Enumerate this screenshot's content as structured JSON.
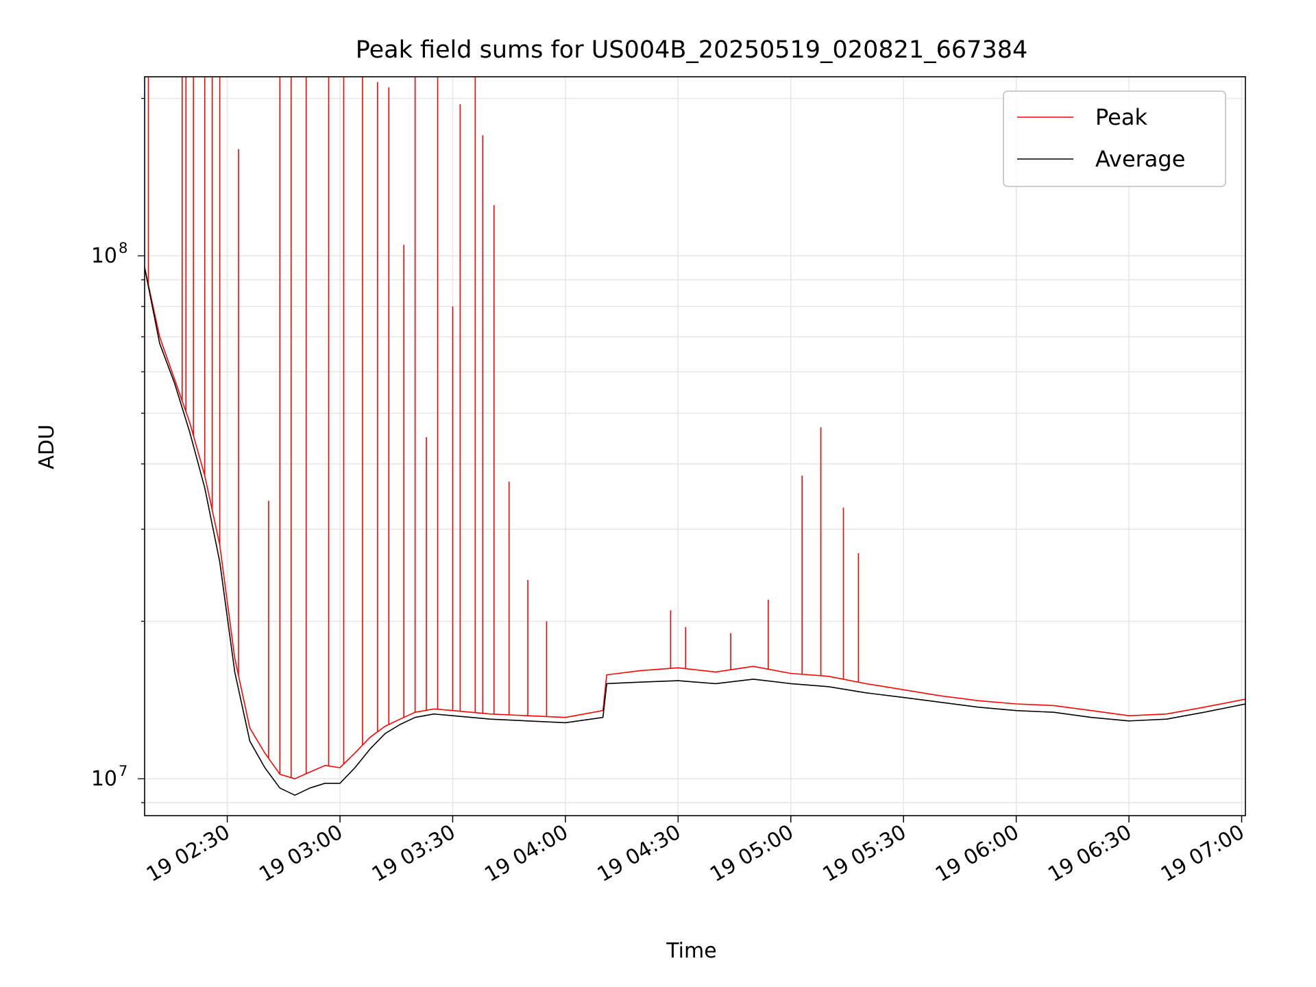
{
  "chart_data": {
    "type": "line",
    "title": "Peak field sums for US004B_20250519_020821_667384",
    "xlabel": "Time",
    "ylabel": "ADU",
    "x_range": [
      "2025-05-19 02:08",
      "2025-05-19 07:01"
    ],
    "ylim": [
      8500000,
      220000000
    ],
    "yscale": "log",
    "grid": true,
    "legend_placement": "upper right",
    "x_ticks": [
      "19 02:30",
      "19 03:00",
      "19 03:30",
      "19 04:00",
      "19 04:30",
      "19 05:00",
      "19 05:30",
      "19 06:00",
      "19 06:30",
      "19 07:00"
    ],
    "y_ticks": [
      {
        "label": "10",
        "exponent": "7",
        "value": 10000000
      },
      {
        "label": "10",
        "exponent": "8",
        "value": 100000000
      }
    ],
    "series": [
      {
        "name": "Peak",
        "color": "#ff0000",
        "x": [
          "02:08",
          "02:12",
          "02:16",
          "02:20",
          "02:24",
          "02:28",
          "02:32",
          "02:36",
          "02:40",
          "02:44",
          "02:48",
          "02:52",
          "02:56",
          "03:00",
          "03:04",
          "03:08",
          "03:12",
          "03:16",
          "03:20",
          "03:25",
          "03:30",
          "03:40",
          "03:50",
          "04:00",
          "04:10",
          "04:11",
          "04:20",
          "04:30",
          "04:40",
          "04:50",
          "05:00",
          "05:10",
          "05:20",
          "05:30",
          "05:40",
          "05:50",
          "06:00",
          "06:10",
          "06:20",
          "06:30",
          "06:40",
          "06:50",
          "07:01"
        ],
        "y": [
          95000000,
          70000000,
          58000000,
          48000000,
          38000000,
          28000000,
          17000000,
          12500000,
          11200000,
          10200000,
          10000000,
          10300000,
          10600000,
          10500000,
          11200000,
          12000000,
          12600000,
          13000000,
          13400000,
          13600000,
          13500000,
          13300000,
          13200000,
          13100000,
          13500000,
          15800000,
          16100000,
          16300000,
          16000000,
          16400000,
          15900000,
          15700000,
          15200000,
          14800000,
          14400000,
          14100000,
          13900000,
          13800000,
          13500000,
          13200000,
          13300000,
          13700000,
          14200000
        ],
        "spikes": [
          {
            "x": "02:09",
            "y": 220000000
          },
          {
            "x": "02:18",
            "y": 220000000
          },
          {
            "x": "02:19",
            "y": 220000000
          },
          {
            "x": "02:21",
            "y": 220000000
          },
          {
            "x": "02:24",
            "y": 220000000
          },
          {
            "x": "02:26",
            "y": 220000000
          },
          {
            "x": "02:28",
            "y": 220000000
          },
          {
            "x": "02:33",
            "y": 160000000
          },
          {
            "x": "02:41",
            "y": 34000000
          },
          {
            "x": "02:44",
            "y": 220000000
          },
          {
            "x": "02:47",
            "y": 220000000
          },
          {
            "x": "02:51",
            "y": 220000000
          },
          {
            "x": "02:57",
            "y": 220000000
          },
          {
            "x": "03:01",
            "y": 220000000
          },
          {
            "x": "03:06",
            "y": 220000000
          },
          {
            "x": "03:10",
            "y": 215000000
          },
          {
            "x": "03:13",
            "y": 210000000
          },
          {
            "x": "03:17",
            "y": 105000000
          },
          {
            "x": "03:20",
            "y": 220000000
          },
          {
            "x": "03:23",
            "y": 45000000
          },
          {
            "x": "03:26",
            "y": 220000000
          },
          {
            "x": "03:30",
            "y": 80000000
          },
          {
            "x": "03:32",
            "y": 195000000
          },
          {
            "x": "03:36",
            "y": 220000000
          },
          {
            "x": "03:38",
            "y": 170000000
          },
          {
            "x": "03:41",
            "y": 125000000
          },
          {
            "x": "03:45",
            "y": 37000000
          },
          {
            "x": "03:50",
            "y": 24000000
          },
          {
            "x": "03:55",
            "y": 20000000
          },
          {
            "x": "04:28",
            "y": 21000000
          },
          {
            "x": "04:32",
            "y": 19500000
          },
          {
            "x": "04:44",
            "y": 19000000
          },
          {
            "x": "04:54",
            "y": 22000000
          },
          {
            "x": "05:03",
            "y": 38000000
          },
          {
            "x": "05:08",
            "y": 47000000
          },
          {
            "x": "05:14",
            "y": 33000000
          },
          {
            "x": "05:18",
            "y": 27000000
          }
        ]
      },
      {
        "name": "Average",
        "color": "#000000",
        "x": [
          "02:08",
          "02:12",
          "02:16",
          "02:20",
          "02:24",
          "02:28",
          "02:32",
          "02:36",
          "02:40",
          "02:44",
          "02:48",
          "02:52",
          "02:56",
          "03:00",
          "03:04",
          "03:08",
          "03:12",
          "03:16",
          "03:20",
          "03:25",
          "03:30",
          "03:40",
          "03:50",
          "04:00",
          "04:10",
          "04:11",
          "04:20",
          "04:30",
          "04:40",
          "04:50",
          "05:00",
          "05:10",
          "05:20",
          "05:30",
          "05:40",
          "05:50",
          "06:00",
          "06:10",
          "06:20",
          "06:30",
          "06:40",
          "06:50",
          "07:01"
        ],
        "y": [
          95000000,
          68000000,
          57000000,
          46000000,
          36000000,
          26000000,
          16000000,
          11800000,
          10500000,
          9600000,
          9300000,
          9600000,
          9800000,
          9800000,
          10500000,
          11400000,
          12200000,
          12700000,
          13100000,
          13300000,
          13200000,
          13000000,
          12900000,
          12800000,
          13100000,
          15200000,
          15300000,
          15400000,
          15200000,
          15500000,
          15200000,
          15000000,
          14600000,
          14300000,
          14000000,
          13700000,
          13500000,
          13400000,
          13100000,
          12900000,
          13000000,
          13400000,
          13900000
        ]
      }
    ]
  }
}
